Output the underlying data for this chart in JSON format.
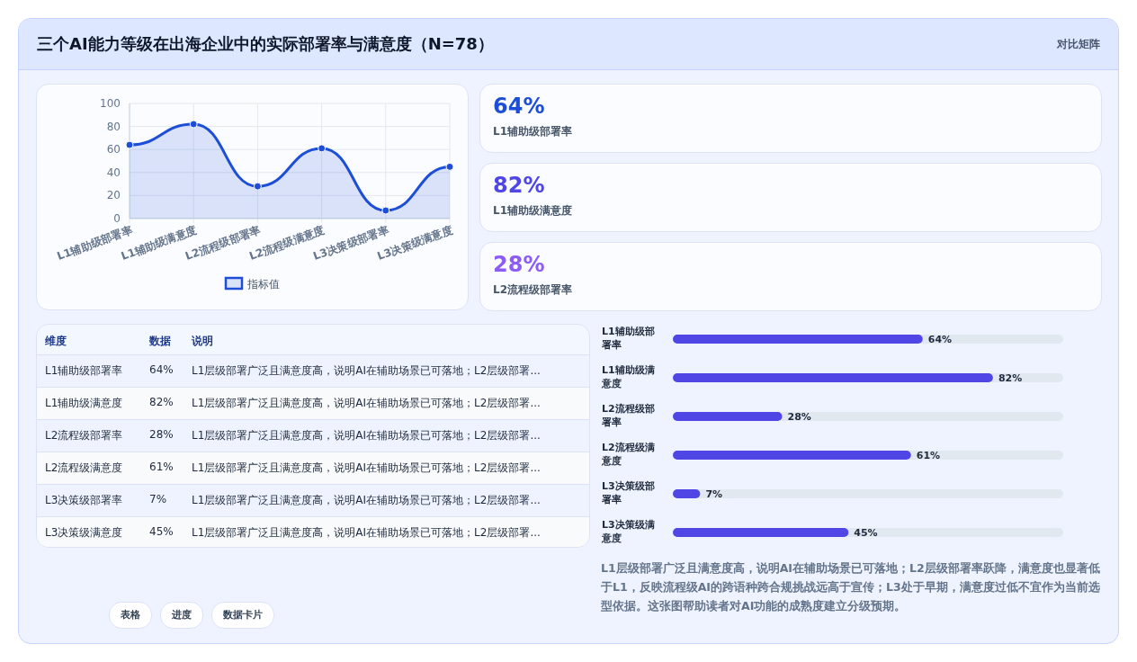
{
  "chart_data": [
    {
      "type": "area",
      "title": "三个AI能力等级在出海企业中的实际部署率与满意度（N=78）",
      "annotations": [
        "对比矩阵"
      ],
      "categories": [
        "L1辅助级部署率",
        "L1辅助级满意度",
        "L2流程级部署率",
        "L2流程级满意度",
        "L3决策级部署率",
        "L3决策级满意度"
      ],
      "series": [
        {
          "name": "指标值",
          "color": "#1d4ed8",
          "values": [
            64,
            82,
            28,
            61,
            7,
            45
          ]
        }
      ],
      "ylim": [
        0,
        100
      ],
      "yticks": [
        0,
        20,
        40,
        60,
        80,
        100
      ],
      "grid": true,
      "legend": "bottom",
      "marker": "circle"
    },
    {
      "type": "other",
      "annotations": [
        "64%",
        "L1辅助级部署率",
        "82%",
        "L1辅助级满意度",
        "28%",
        "L2流程级部署率"
      ]
    },
    {
      "type": "other",
      "annotations": [
        "维度",
        "数据",
        "说明",
        "L1辅助级部署率",
        "64%",
        "L1层级部署广泛且满意度高，说明AI在辅助场景已可落地；L2层级部署...",
        "L1辅助级满意度",
        "82%",
        "L1层级部署广泛且满意度高，说明AI在辅助场景已可落地；L2层级部署...",
        "L2流程级部署率",
        "28%",
        "L1层级部署广泛且满意度高，说明AI在辅助场景已可落地；L2层级部署...",
        "L2流程级满意度",
        "61%",
        "L1层级部署广泛且满意度高，说明AI在辅助场景已可落地；L2层级部署...",
        "L3决策级部署率",
        "7%",
        "L1层级部署广泛且满意度高，说明AI在辅助场景已可落地；L2层级部署...",
        "L3决策级满意度",
        "45%",
        "L1层级部署广泛且满意度高，说明AI在辅助场景已可落地；L2层级部署..."
      ]
    },
    {
      "type": "bar",
      "orientation": "horizontal",
      "categories": [
        "L1辅助级部署率",
        "L1辅助级满意度",
        "L2流程级部署率",
        "L2流程级满意度",
        "L3决策级部署率",
        "L3决策级满意度"
      ],
      "values": [
        64,
        82,
        28,
        61,
        7,
        45
      ],
      "value_labels": [
        "64%",
        "82%",
        "28%",
        "61%",
        "7%",
        "45%"
      ],
      "color": "#4f46e5",
      "xlim": [
        0,
        100
      ],
      "annotations": [
        "L1层级部署广泛且满意度高，说明AI在辅助场景已可落地；L2层级部署率跃降，满意度也显著低于L1，反映流程级AI的跨语种跨合规挑战远高于宣传；L3处于早期，满意度过低不宜作为当前选型依据。这张图帮助读者对AI功能的成熟度建立分级预期。"
      ]
    },
    {
      "type": "other",
      "annotations": [
        "表格",
        "进度",
        "数据卡片"
      ]
    }
  ]
}
